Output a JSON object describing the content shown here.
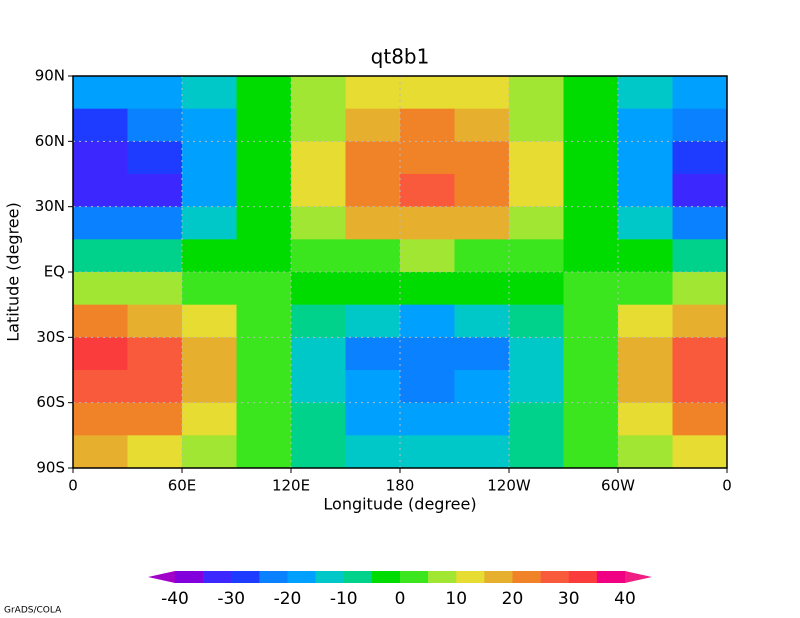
{
  "chart_data": {
    "type": "contour",
    "title": "qt8b1",
    "x_label": "Longitude (degree)",
    "y_label": "Latitude (degree)",
    "footnote": "GrADS/COLA",
    "lon": [
      15,
      45,
      75,
      105,
      135,
      165,
      195,
      225,
      255,
      285,
      315,
      345
    ],
    "lat": [
      82.5,
      67.5,
      52.5,
      37.5,
      22.5,
      7.5,
      -7.5,
      -22.5,
      -37.5,
      -52.5,
      -67.5,
      -82.5
    ],
    "values": [
      [
        -19,
        -17,
        -11,
        -3,
        6,
        12,
        14,
        12,
        6,
        -3,
        -11,
        -17
      ],
      [
        -28,
        -25,
        -16,
        -4,
        8,
        17,
        20,
        17,
        8,
        -4,
        -16,
        -25
      ],
      [
        -33,
        -29,
        -19,
        -5,
        10,
        20,
        24,
        20,
        10,
        -5,
        -19,
        -29
      ],
      [
        -35,
        -31,
        -20,
        -5,
        10,
        21,
        25,
        21,
        10,
        -5,
        -20,
        -31
      ],
      [
        -25,
        -22,
        -14,
        -4,
        7,
        15,
        18,
        15,
        7,
        -4,
        -14,
        -22
      ],
      [
        -7,
        -6,
        -4,
        -1,
        2,
        4,
        5,
        4,
        2,
        -1,
        -4,
        -6
      ],
      [
        6,
        5,
        3,
        1,
        -2,
        -4,
        -5,
        -4,
        -2,
        1,
        3,
        5
      ],
      [
        21,
        18,
        11,
        2,
        -8,
        -15,
        -18,
        -15,
        -8,
        2,
        11,
        18
      ],
      [
        30,
        26,
        16,
        3,
        -11,
        -21,
        -25,
        -21,
        -11,
        3,
        16,
        26
      ],
      [
        29,
        25,
        15,
        2,
        -11,
        -20,
        -24,
        -20,
        -11,
        2,
        15,
        25
      ],
      [
        24,
        21,
        13,
        2,
        -9,
        -17,
        -20,
        -17,
        -9,
        2,
        13,
        21
      ],
      [
        17,
        14,
        9,
        1,
        -6,
        -12,
        -14,
        -12,
        -6,
        1,
        9,
        14
      ]
    ],
    "xlim": [
      0,
      360
    ],
    "ylim": [
      -90,
      90
    ],
    "xticks": [
      {
        "value": 0,
        "label": "0"
      },
      {
        "value": 60,
        "label": "60E"
      },
      {
        "value": 120,
        "label": "120E"
      },
      180,
      {
        "value": 240,
        "label": "120W"
      },
      {
        "value": 300,
        "label": "60W"
      },
      {
        "value": 360,
        "label": "0"
      }
    ],
    "yticks": [
      {
        "value": -90,
        "label": "90S"
      },
      {
        "value": -60,
        "label": "60S"
      },
      {
        "value": -30,
        "label": "30S"
      },
      {
        "value": 0,
        "label": "EQ"
      },
      {
        "value": 30,
        "label": "30N"
      },
      {
        "value": 60,
        "label": "60N"
      },
      {
        "value": 90,
        "label": "90N"
      }
    ],
    "grid": true,
    "levels": [
      -40,
      -35,
      -30,
      -25,
      -20,
      -15,
      -10,
      -5,
      0,
      5,
      10,
      15,
      20,
      25,
      30,
      35,
      40
    ],
    "colors": [
      "#a000c8",
      "#8200dc",
      "#3c28ff",
      "#1e3cff",
      "#0a82ff",
      "#00a0ff",
      "#00c8c8",
      "#00d28c",
      "#00dc00",
      "#3ce61e",
      "#a0e632",
      "#e6dc32",
      "#e6af2d",
      "#f08228",
      "#fa5a3c",
      "#fa3c3c",
      "#f00082",
      "#f01e82"
    ],
    "colorbar_ticks": [
      -40,
      -30,
      -20,
      -10,
      0,
      10,
      20,
      30,
      40
    ]
  }
}
